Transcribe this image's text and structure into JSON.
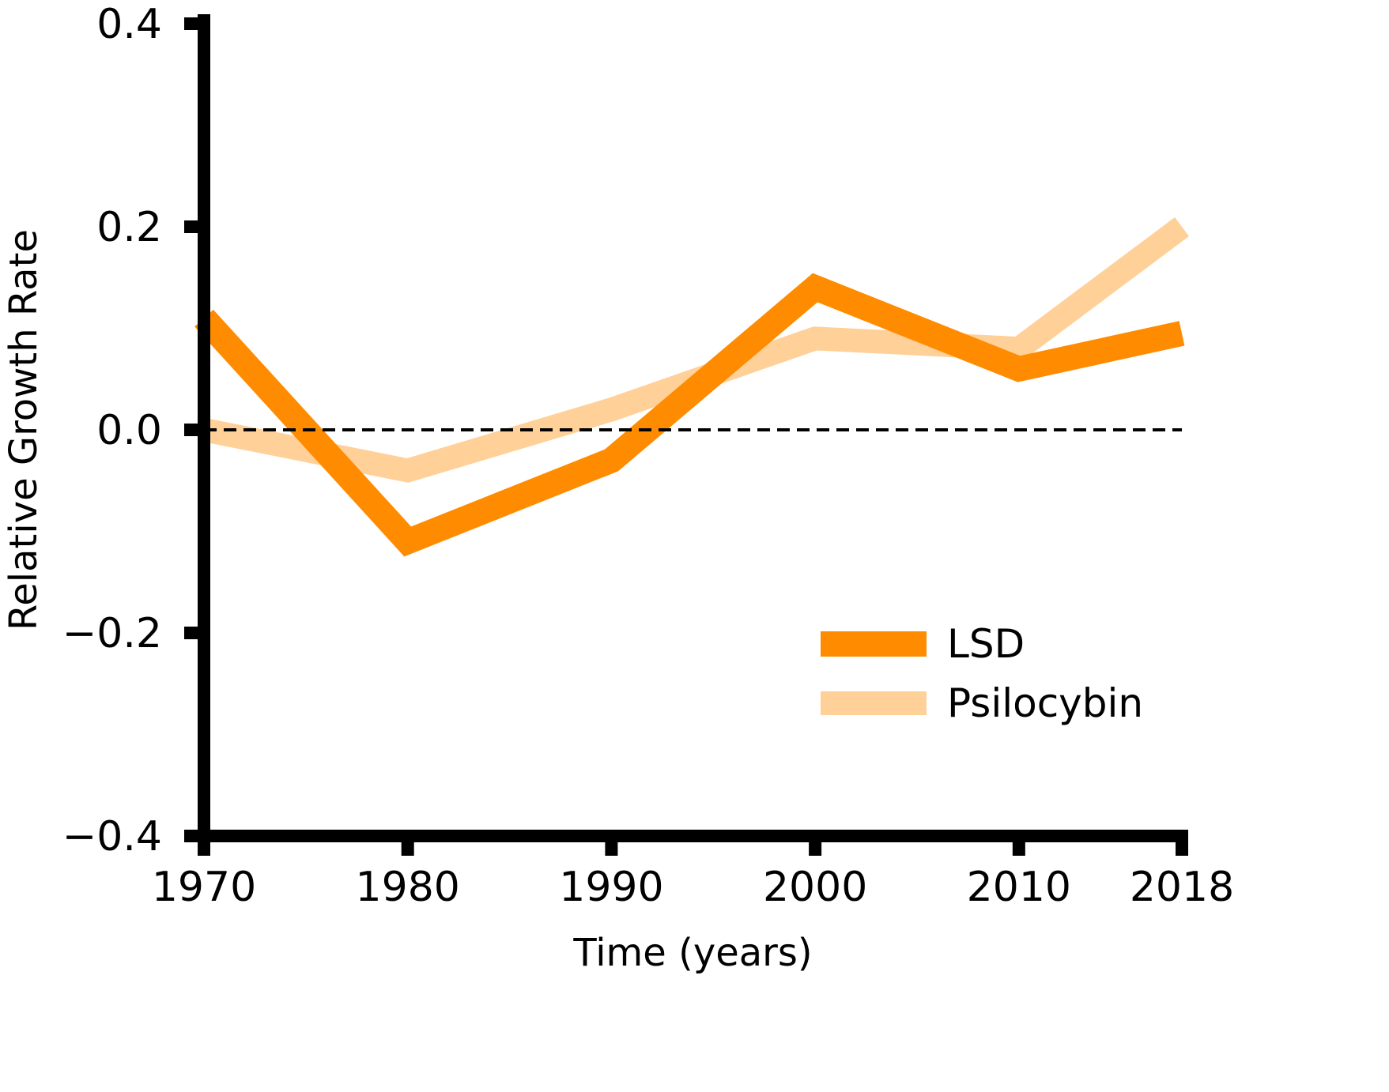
{
  "chart_data": {
    "type": "line",
    "xlabel": "Time (years)",
    "ylabel": "Relative Growth Rate",
    "x": [
      1970,
      1980,
      1990,
      2000,
      2010,
      2018
    ],
    "xticks": [
      "1970",
      "1980",
      "1990",
      "2000",
      "2010",
      "2018"
    ],
    "xlim": [
      1970,
      2018
    ],
    "ylim": [
      -0.4,
      0.4
    ],
    "yticks": [
      0.4,
      0.2,
      0.0,
      -0.2,
      -0.4
    ],
    "ytick_labels": [
      "0.4",
      "0.2",
      "0.0",
      "−0.2",
      "−0.4"
    ],
    "reference_line": {
      "y": 0.0,
      "style": "dashed",
      "color": "#000000"
    },
    "series": [
      {
        "name": "LSD",
        "color": "#ff8c00",
        "values": [
          0.11,
          -0.11,
          -0.03,
          0.14,
          0.06,
          0.095
        ]
      },
      {
        "name": "Psilocybin",
        "color": "#ffd098",
        "values": [
          0.0,
          -0.04,
          0.02,
          0.09,
          0.08,
          0.2
        ]
      }
    ],
    "legend": {
      "position": "lower-right"
    },
    "grid": false
  }
}
